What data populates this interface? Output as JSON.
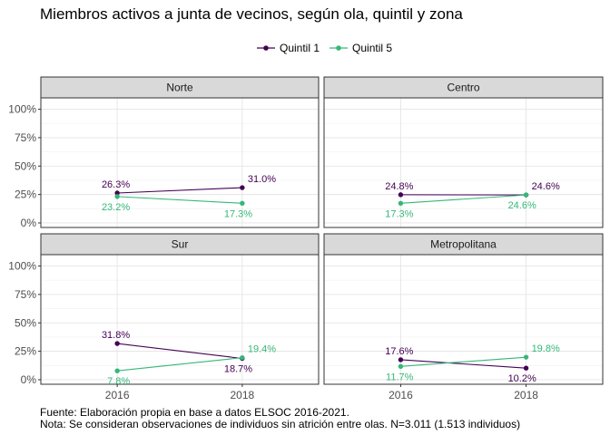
{
  "chart_data": {
    "type": "line",
    "title": "Miembros activos a junta de vecinos, según ola, quintil y zona",
    "caption_lines": [
      "Fuente: Elaboración propia en base a datos ELSOC 2016-2021.",
      "Nota: Se consideran observaciones de individuos sin atrición entre olas. N=3.011 (1.513 individuos)"
    ],
    "x": [
      "2016",
      "2018"
    ],
    "ylim": [
      0,
      1.0
    ],
    "yticks": [
      "0%",
      "25%",
      "50%",
      "75%",
      "100%"
    ],
    "ytick_values": [
      0,
      0.25,
      0.5,
      0.75,
      1.0
    ],
    "legend": {
      "position": "top",
      "items": [
        "Quintil 1",
        "Quintil 5"
      ]
    },
    "colors": {
      "Quintil 1": "#440154",
      "Quintil 5": "#35B779"
    },
    "grid": true,
    "panels": [
      {
        "name": "Norte",
        "series": [
          {
            "name": "Quintil 1",
            "values": [
              0.263,
              0.31
            ],
            "labels": [
              "26.3%",
              "31.0%"
            ]
          },
          {
            "name": "Quintil 5",
            "values": [
              0.232,
              0.173
            ],
            "labels": [
              "23.2%",
              "17.3%"
            ]
          }
        ]
      },
      {
        "name": "Centro",
        "series": [
          {
            "name": "Quintil 1",
            "values": [
              0.248,
              0.246
            ],
            "labels": [
              "24.8%",
              "24.6%"
            ]
          },
          {
            "name": "Quintil 5",
            "values": [
              0.173,
              0.246
            ],
            "labels": [
              "17.3%",
              "24.6%"
            ]
          }
        ]
      },
      {
        "name": "Sur",
        "series": [
          {
            "name": "Quintil 1",
            "values": [
              0.318,
              0.187
            ],
            "labels": [
              "31.8%",
              "18.7%"
            ]
          },
          {
            "name": "Quintil 5",
            "values": [
              0.078,
              0.194
            ],
            "labels": [
              "7.8%",
              "19.4%"
            ]
          }
        ]
      },
      {
        "name": "Metropolitana",
        "series": [
          {
            "name": "Quintil 1",
            "values": [
              0.176,
              0.102
            ],
            "labels": [
              "17.6%",
              "10.2%"
            ]
          },
          {
            "name": "Quintil 5",
            "values": [
              0.117,
              0.198
            ],
            "labels": [
              "11.7%",
              "19.8%"
            ]
          }
        ]
      }
    ]
  }
}
